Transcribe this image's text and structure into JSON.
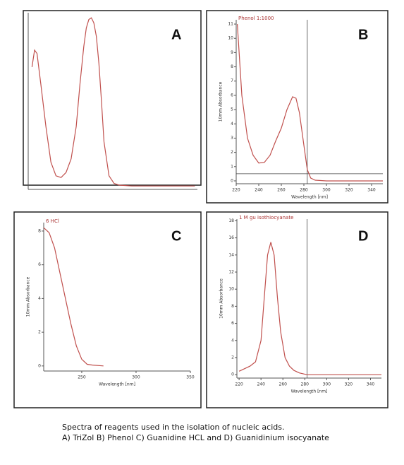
{
  "chart_data": [
    {
      "type": "line",
      "title": "A",
      "x": [
        221,
        223,
        225,
        228,
        232,
        236,
        240,
        244,
        248,
        252,
        256,
        259,
        262,
        264,
        266,
        268,
        270,
        272,
        274,
        276,
        278,
        282,
        286,
        290,
        300,
        320,
        350
      ],
      "series": [
        {
          "name": null,
          "color": "#c0504d",
          "values": [
            70,
            80,
            78,
            60,
            35,
            14,
            6,
            5,
            8,
            16,
            35,
            60,
            82,
            93,
            98,
            99,
            96,
            88,
            72,
            50,
            26,
            6,
            1.5,
            0.5,
            0,
            0,
            0
          ]
        }
      ],
      "xlim": [
        218,
        352
      ],
      "ylim": [
        -2,
        102
      ]
    },
    {
      "type": "line",
      "title": "B",
      "legend_text": "Phenol 1:1000",
      "x_label": "Wavelength [nm]",
      "y_label": "10mm Absorbance",
      "x": [
        221,
        225,
        230,
        235,
        240,
        245,
        250,
        255,
        260,
        265,
        270,
        273,
        276,
        280,
        283,
        286,
        290,
        300,
        350
      ],
      "series": [
        {
          "name": null,
          "color": "#c0504d",
          "values": [
            11,
            6,
            3,
            1.8,
            1.25,
            1.3,
            1.8,
            2.8,
            3.7,
            5,
            5.9,
            5.8,
            4.8,
            2.5,
            0.8,
            0.2,
            0.05,
            0,
            0
          ]
        }
      ],
      "xlim": [
        220,
        350
      ],
      "ylim": [
        -0.2,
        11.3
      ],
      "xticks": [
        220,
        240,
        260,
        280,
        300,
        320,
        340
      ],
      "yticks": [
        0,
        1,
        2,
        3,
        4,
        5,
        6,
        7,
        8,
        9,
        10,
        11
      ],
      "cursor_x": 283,
      "cursor_y": 0.5
    },
    {
      "type": "line",
      "title": "C",
      "legend_text": "6 HCl",
      "x_label": "Wavelength [nm]",
      "y_label": "10mm Absorbance",
      "x": [
        215,
        220,
        225,
        230,
        235,
        240,
        245,
        250,
        255,
        260,
        270
      ],
      "series": [
        {
          "name": null,
          "color": "#c0504d",
          "values": [
            8.2,
            7.9,
            7.0,
            5.5,
            4.0,
            2.5,
            1.2,
            0.4,
            0.1,
            0.05,
            0
          ]
        }
      ],
      "xlim": [
        215,
        350
      ],
      "ylim": [
        -0.3,
        8.5
      ],
      "xticks": [
        250,
        300,
        350
      ],
      "yticks": [
        0,
        2,
        4,
        6,
        8
      ]
    },
    {
      "type": "line",
      "title": "D",
      "legend_text": "1 M gu isothiocyanate",
      "x_label": "Wavelength [nm]",
      "y_label": "10mm Absorbance",
      "x": [
        220,
        225,
        230,
        235,
        240,
        243,
        246,
        249,
        252,
        255,
        258,
        262,
        266,
        270,
        275,
        282,
        350
      ],
      "series": [
        {
          "name": null,
          "color": "#c0504d",
          "values": [
            0.4,
            0.7,
            1,
            1.5,
            4,
            9,
            14,
            15.5,
            14,
            9,
            5,
            2,
            1,
            0.5,
            0.2,
            0,
            0
          ]
        }
      ],
      "xlim": [
        218,
        350
      ],
      "ylim": [
        -0.4,
        18.2
      ],
      "xticks": [
        220,
        240,
        260,
        280,
        300,
        320,
        340
      ],
      "yticks": [
        0,
        2,
        4,
        6,
        8,
        10,
        12,
        14,
        16,
        18
      ],
      "cursor_x": 282
    }
  ],
  "caption": [
    "Spectra of reagents used in the isolation of nucleic acids.",
    "A) TriZol B) Phenol C) Guanidine HCL and D) Guanidinium isocyanate"
  ]
}
